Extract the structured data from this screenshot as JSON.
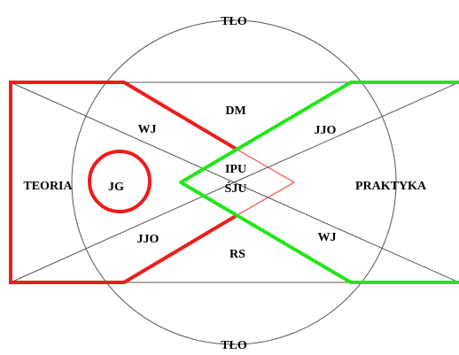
{
  "labels": {
    "top": "TŁO",
    "bottom": "TŁO",
    "left": "TEORIA",
    "right": "PRAKTYKA",
    "center_line1": "IPU",
    "center_line2": "ŚJU",
    "upper_mid": "DM",
    "lower_mid": "RS",
    "upper_left": "WJ",
    "upper_right": "JJO",
    "lower_left": "JJO",
    "lower_right": "WJ",
    "circle": "JG"
  },
  "colors": {
    "teoria_line": "#ee1c1c",
    "praktyka_line": "#22e61a",
    "thin_line": "#555555",
    "text": "#000000"
  }
}
